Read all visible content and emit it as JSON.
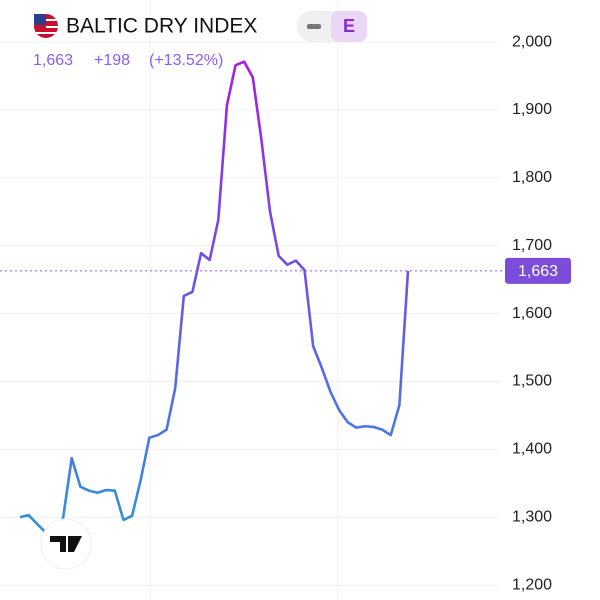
{
  "chart_data": {
    "type": "line",
    "title": "BALTIC DRY INDEX",
    "badge": "E",
    "change": "+198",
    "change_pct": "(+13.52%)",
    "last_price": {
      "value": 1663,
      "label": "1,663"
    },
    "series": [
      {
        "name": "BALTIC DRY INDEX",
        "colors": [
          "#2f93e0",
          "#a51de6"
        ],
        "values": [
          1300,
          1303,
          1290,
          1277,
          1270,
          1299,
          1387,
          1345,
          1339,
          1336,
          1340,
          1339,
          1296,
          1302,
          1355,
          1417,
          1421,
          1429,
          1490,
          1626,
          1632,
          1689,
          1679,
          1738,
          1907,
          1966,
          1971,
          1948,
          1856,
          1750,
          1685,
          1672,
          1678,
          1664,
          1552,
          1520,
          1485,
          1458,
          1440,
          1432,
          1434,
          1433,
          1429,
          1421,
          1465,
          1663
        ]
      }
    ],
    "ylim": [
      1178,
      2062
    ],
    "yticks": [
      {
        "value": 1200,
        "label": "1,200"
      },
      {
        "value": 1300,
        "label": "1,300"
      },
      {
        "value": 1400,
        "label": "1,400"
      },
      {
        "value": 1500,
        "label": "1,500"
      },
      {
        "value": 1600,
        "label": "1,600"
      },
      {
        "value": 1700,
        "label": "1,700"
      },
      {
        "value": 1800,
        "label": "1,800"
      },
      {
        "value": 1900,
        "label": "1,900"
      },
      {
        "value": 2000,
        "label": "2,000"
      }
    ],
    "grid": true
  }
}
